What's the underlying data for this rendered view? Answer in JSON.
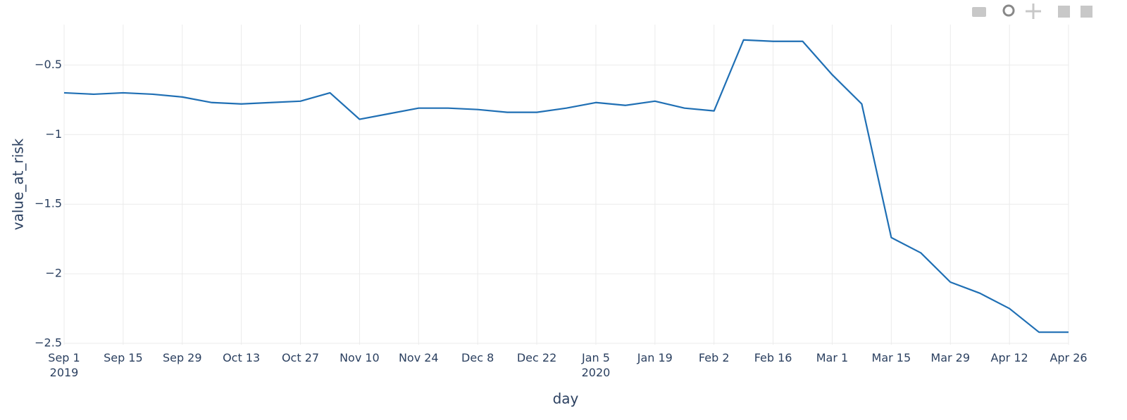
{
  "chart_data": {
    "type": "line",
    "x_label": "day",
    "y_label": "value_at_risk",
    "x": [
      "2019-09-01",
      "2019-09-08",
      "2019-09-15",
      "2019-09-22",
      "2019-09-29",
      "2019-10-06",
      "2019-10-13",
      "2019-10-20",
      "2019-10-27",
      "2019-11-03",
      "2019-11-10",
      "2019-11-17",
      "2019-11-24",
      "2019-12-01",
      "2019-12-08",
      "2019-12-15",
      "2019-12-22",
      "2019-12-29",
      "2020-01-05",
      "2020-01-12",
      "2020-01-19",
      "2020-01-26",
      "2020-02-02",
      "2020-02-09",
      "2020-02-16",
      "2020-02-23",
      "2020-03-01",
      "2020-03-08",
      "2020-03-15",
      "2020-03-22",
      "2020-03-29",
      "2020-04-05",
      "2020-04-12",
      "2020-04-19",
      "2020-04-26"
    ],
    "series": [
      {
        "name": "value_at_risk",
        "color": "#1f6fb4",
        "values": [
          -0.7,
          -0.71,
          -0.7,
          -0.71,
          -0.73,
          -0.77,
          -0.78,
          -0.77,
          -0.76,
          -0.7,
          -0.89,
          -0.85,
          -0.81,
          -0.81,
          -0.82,
          -0.84,
          -0.84,
          -0.81,
          -0.77,
          -0.79,
          -0.76,
          -0.81,
          -0.83,
          -0.32,
          -0.33,
          -0.33,
          -0.57,
          -0.78,
          -1.74,
          -1.85,
          -2.06,
          -2.14,
          -2.25,
          -2.42,
          -2.42
        ]
      }
    ],
    "xlim": [
      "2019-09-01",
      "2020-04-26"
    ],
    "xticks": [
      {
        "value": "2019-09-01",
        "label": "Sep 1\n2019"
      },
      {
        "value": "2019-09-15",
        "label": "Sep 15"
      },
      {
        "value": "2019-09-29",
        "label": "Sep 29"
      },
      {
        "value": "2019-10-13",
        "label": "Oct 13"
      },
      {
        "value": "2019-10-27",
        "label": "Oct 27"
      },
      {
        "value": "2019-11-10",
        "label": "Nov 10"
      },
      {
        "value": "2019-11-24",
        "label": "Nov 24"
      },
      {
        "value": "2019-12-08",
        "label": "Dec 8"
      },
      {
        "value": "2019-12-22",
        "label": "Dec 22"
      },
      {
        "value": "2020-01-05",
        "label": "Jan 5\n2020"
      },
      {
        "value": "2020-01-19",
        "label": "Jan 19"
      },
      {
        "value": "2020-02-02",
        "label": "Feb 2"
      },
      {
        "value": "2020-02-16",
        "label": "Feb 16"
      },
      {
        "value": "2020-03-01",
        "label": "Mar 1"
      },
      {
        "value": "2020-03-15",
        "label": "Mar 15"
      },
      {
        "value": "2020-03-29",
        "label": "Mar 29"
      },
      {
        "value": "2020-04-12",
        "label": "Apr 12"
      },
      {
        "value": "2020-04-26",
        "label": "Apr 26"
      }
    ],
    "ylim": [
      -2.51,
      -0.21
    ],
    "yticks": [
      {
        "value": -2.5,
        "label": "−2.5"
      },
      {
        "value": -2,
        "label": "−2"
      },
      {
        "value": -1.5,
        "label": "−1.5"
      },
      {
        "value": -1,
        "label": "−1"
      },
      {
        "value": -0.5,
        "label": "−0.5"
      }
    ],
    "grid": true
  }
}
